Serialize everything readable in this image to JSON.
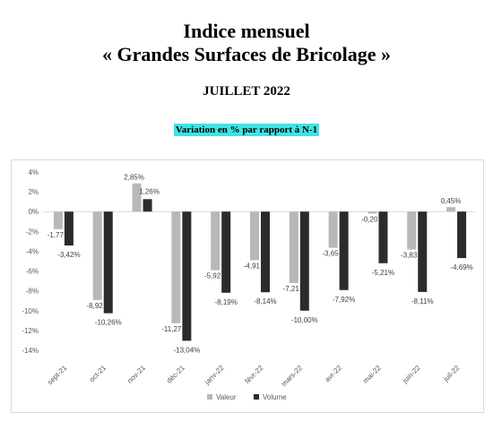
{
  "header": {
    "title_line1": "Indice mensuel",
    "title_line2": "« Grandes Surfaces de Bricolage »",
    "period": "JUILLET 2022",
    "subtitle": "Variation en % par rapport à N-1",
    "subtitle_bg": "#3fe3e3"
  },
  "chart_data": {
    "type": "bar",
    "categories": [
      "sept-21",
      "oct-21",
      "nov-21",
      "déc-21",
      "janv-22",
      "févr-22",
      "mars-22",
      "avr-22",
      "mai-22",
      "juin-22",
      "juil-22"
    ],
    "series": [
      {
        "name": "Valeur",
        "color": "#b8b8b8",
        "values": [
          -1.77,
          -8.92,
          2.85,
          -11.27,
          -5.92,
          -4.91,
          -7.21,
          -3.65,
          -0.2,
          -3.83,
          0.45
        ],
        "labels": [
          "-1,77",
          "-8,92",
          "2,85%",
          "-11,27",
          "-5,92",
          "-4,91",
          "-7,21",
          "-3,65",
          "-0,20",
          "-3,83",
          "0,45%"
        ]
      },
      {
        "name": "Volume",
        "color": "#2b2b2b",
        "values": [
          -3.42,
          -10.26,
          1.26,
          -13.04,
          -8.19,
          -8.14,
          -10.0,
          -7.92,
          -5.21,
          -8.11,
          -4.69
        ],
        "labels": [
          "-3,42%",
          "-10,26%",
          "1,26%",
          "-13,04%",
          "-8,19%",
          "-8,14%",
          "-10,00%",
          "-7,92%",
          "-5,21%",
          "-8,11%",
          "-4,69%"
        ]
      }
    ],
    "y_ticks": [
      4,
      2,
      0,
      -2,
      -4,
      -6,
      -8,
      -10,
      -12,
      -14
    ],
    "y_tick_labels": [
      "4%",
      "2%",
      "0%",
      "-2%",
      "-4%",
      "-6%",
      "-8%",
      "-10%",
      "-12%",
      "-14%"
    ],
    "ylim": [
      -14,
      4
    ],
    "grid": false,
    "legend_position": "bottom"
  }
}
